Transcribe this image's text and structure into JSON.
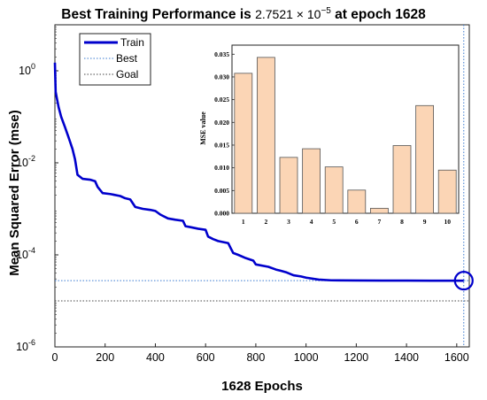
{
  "chart_data": [
    {
      "type": "line",
      "title_main": "Best Training Performance is",
      "title_value": "2.7521 × 10",
      "title_exponent": "−5",
      "title_suffix": "at epoch 1628",
      "xlabel": "1628 Epochs",
      "ylabel": "Mean Squared Error  (mse)",
      "xlim": [
        0,
        1650
      ],
      "ylim": [
        1e-06,
        10
      ],
      "yscale": "log",
      "xticks": [
        0,
        200,
        400,
        600,
        800,
        1000,
        1200,
        1400,
        1600
      ],
      "yticks": [
        {
          "value": 1e-06,
          "base": "10",
          "exp": "-6"
        },
        {
          "value": 0.0001,
          "base": "10",
          "exp": "-4"
        },
        {
          "value": 0.01,
          "base": "10",
          "exp": "-2"
        },
        {
          "value": 1,
          "base": "10",
          "exp": "0"
        }
      ],
      "legend_position": "top-left",
      "series": [
        {
          "name": "Train",
          "color": "#0000cc",
          "style": "solid",
          "x": [
            0,
            3,
            8,
            15,
            25,
            40,
            55,
            70,
            80,
            90,
            110,
            140,
            160,
            170,
            190,
            220,
            260,
            280,
            300,
            320,
            350,
            380,
            400,
            420,
            450,
            480,
            510,
            520,
            540,
            570,
            600,
            610,
            630,
            650,
            690,
            700,
            710,
            730,
            760,
            790,
            800,
            850,
            880,
            900,
            920,
            950,
            980,
            1000,
            1050,
            1100,
            1200,
            1300,
            1400,
            1500,
            1628
          ],
          "y": [
            1.5,
            0.35,
            0.25,
            0.16,
            0.1,
            0.06,
            0.035,
            0.02,
            0.012,
            0.0055,
            0.0045,
            0.0043,
            0.004,
            0.003,
            0.0022,
            0.0021,
            0.0019,
            0.0017,
            0.0016,
            0.0011,
            0.001,
            0.00095,
            0.0009,
            0.00075,
            0.00062,
            0.00058,
            0.00055,
            0.00042,
            0.0004,
            0.00037,
            0.00035,
            0.00025,
            0.00022,
            0.0002,
            0.00018,
            0.00014,
            0.00011,
            0.0001,
            8.5e-05,
            7.5e-05,
            6.2e-05,
            5.5e-05,
            4.8e-05,
            4.5e-05,
            4.2e-05,
            3.6e-05,
            3.4e-05,
            3.2e-05,
            2.9e-05,
            2.8e-05,
            2.78e-05,
            2.76e-05,
            2.76e-05,
            2.75e-05,
            2.7521e-05
          ]
        },
        {
          "name": "Best",
          "color": "#3a7ad0",
          "style": "dotted",
          "y": 2.7521e-05,
          "x": 1628
        },
        {
          "name": "Goal",
          "color": "#444444",
          "style": "dotted",
          "y": 1e-05
        }
      ],
      "best_marker": {
        "x": 1628,
        "y": 2.7521e-05,
        "color": "#0000cc"
      }
    },
    {
      "type": "bar",
      "categories": [
        "1",
        "2",
        "3",
        "4",
        "5",
        "6",
        "7",
        "8",
        "9",
        "10"
      ],
      "values": [
        0.0308,
        0.0343,
        0.0123,
        0.0142,
        0.0102,
        0.0051,
        0.0011,
        0.0149,
        0.0237,
        0.0095
      ],
      "ylabel": "MSE value",
      "ylim": [
        0,
        0.037
      ],
      "yticks": [
        "0.000",
        "0.005",
        "0.010",
        "0.015",
        "0.020",
        "0.025",
        "0.030",
        "0.035"
      ],
      "bar_fill": "#fbd5b5",
      "bar_stroke": "#555555"
    }
  ]
}
